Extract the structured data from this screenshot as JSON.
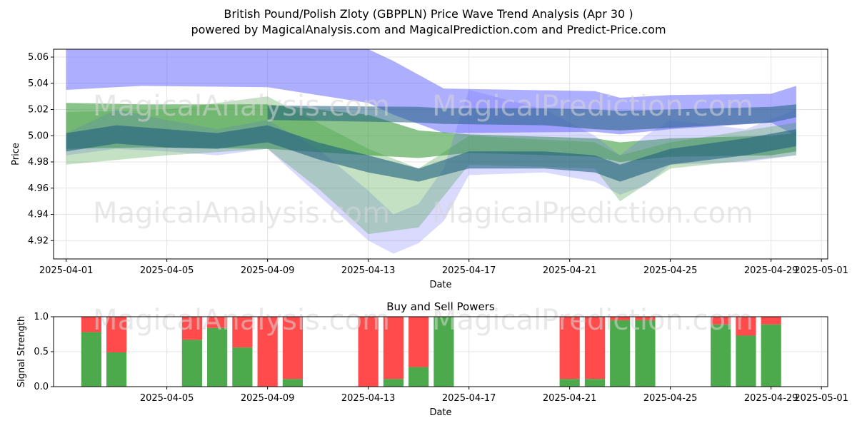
{
  "header": {
    "title": "British Pound/Polish Zloty (GBPPLN) Price Wave Trend Analysis (Apr 30 )",
    "subtitle": "powered by MagicalAnalysis.com and MagicalPrediction.com and Predict-Price.com"
  },
  "watermarks": {
    "left": "MagicalAnalysis.com",
    "right": "MagicalPrediction.com"
  },
  "colors": {
    "blue_band": "#6b6bff",
    "green_band": "#3c9c3c",
    "dark_band": "#1f5f7f",
    "buy": "#4caa4c",
    "sell": "#ff4b4b",
    "grid": "#e3e3e3"
  },
  "chart_data": [
    {
      "type": "area",
      "title": "",
      "xlabel": "Date",
      "ylabel": "Price",
      "x_range": [
        "2025-03-31T12:00",
        "2025-05-01T06:00"
      ],
      "ylim": [
        4.906,
        5.066
      ],
      "x_ticks": [
        "2025-04-01",
        "2025-04-05",
        "2025-04-09",
        "2025-04-13",
        "2025-04-17",
        "2025-04-21",
        "2025-04-25",
        "2025-04-29",
        "2025-05-01"
      ],
      "y_ticks": [
        4.92,
        4.94,
        4.96,
        4.98,
        5.0,
        5.02,
        5.04,
        5.06
      ],
      "grid": true,
      "series": [
        {
          "color": "blue_band",
          "opacity": 0.55,
          "x": [
            "2025-04-01",
            "2025-04-04",
            "2025-04-09",
            "2025-04-13",
            "2025-04-14",
            "2025-04-16",
            "2025-04-22",
            "2025-04-23",
            "2025-04-25",
            "2025-04-29",
            "2025-04-30"
          ],
          "upper": [
            5.07,
            5.07,
            5.07,
            5.066,
            5.057,
            5.036,
            5.034,
            5.029,
            5.031,
            5.032,
            5.038
          ],
          "lower": [
            5.035,
            5.038,
            5.037,
            5.025,
            5.016,
            5.002,
            5.003,
            5.001,
            5.005,
            5.01,
            5.0
          ]
        },
        {
          "color": "green_band",
          "opacity": 0.6,
          "x": [
            "2025-04-01",
            "2025-04-04",
            "2025-04-09",
            "2025-04-13",
            "2025-04-15",
            "2025-04-17",
            "2025-04-22",
            "2025-04-23",
            "2025-04-25",
            "2025-04-29",
            "2025-04-30"
          ],
          "upper": [
            5.025,
            5.024,
            5.024,
            5.016,
            5.004,
            5.001,
            4.998,
            4.995,
            4.998,
            5.0,
            5.002
          ],
          "lower": [
            4.99,
            4.991,
            4.99,
            4.985,
            4.983,
            4.987,
            4.984,
            4.98,
            4.984,
            4.985,
            4.988
          ]
        },
        {
          "color": "blue_band",
          "opacity": 0.25,
          "x": [
            "2025-04-01",
            "2025-04-03",
            "2025-04-05",
            "2025-04-07",
            "2025-04-09",
            "2025-04-11",
            "2025-04-13",
            "2025-04-14",
            "2025-04-15",
            "2025-04-16",
            "2025-04-17",
            "2025-04-20",
            "2025-04-22",
            "2025-04-23",
            "2025-04-24",
            "2025-04-25",
            "2025-04-28",
            "2025-04-30"
          ],
          "upper": [
            5.002,
            5.02,
            5.012,
            5.005,
            5.012,
            4.99,
            4.958,
            4.94,
            4.948,
            4.975,
            5.035,
            5.02,
            5.0,
            4.985,
            5.0,
            5.012,
            5.005,
            5.02
          ],
          "lower": [
            4.985,
            4.99,
            4.988,
            4.985,
            4.99,
            4.955,
            4.92,
            4.91,
            4.918,
            4.935,
            4.97,
            4.972,
            4.965,
            4.955,
            4.962,
            4.978,
            4.98,
            4.985
          ]
        },
        {
          "color": "green_band",
          "opacity": 0.3,
          "x": [
            "2025-04-01",
            "2025-04-05",
            "2025-04-09",
            "2025-04-11",
            "2025-04-13",
            "2025-04-15",
            "2025-04-17",
            "2025-04-22",
            "2025-04-23",
            "2025-04-25",
            "2025-04-30"
          ],
          "upper": [
            5.018,
            5.02,
            5.03,
            5.01,
            4.99,
            4.975,
            5.0,
            4.995,
            4.985,
            4.995,
            5.01
          ],
          "lower": [
            4.978,
            4.985,
            4.99,
            4.96,
            4.925,
            4.93,
            4.978,
            4.975,
            4.95,
            4.975,
            4.985
          ]
        },
        {
          "color": "dark_band",
          "opacity": 0.6,
          "x": [
            "2025-04-01",
            "2025-04-03",
            "2025-04-05",
            "2025-04-07",
            "2025-04-09",
            "2025-04-11",
            "2025-04-13",
            "2025-04-15",
            "2025-04-17",
            "2025-04-20",
            "2025-04-22",
            "2025-04-23",
            "2025-04-25",
            "2025-04-28",
            "2025-04-30"
          ],
          "upper": [
            5.002,
            5.008,
            5.005,
            5.002,
            5.008,
            4.995,
            4.985,
            4.975,
            4.988,
            4.988,
            4.985,
            4.978,
            4.99,
            4.998,
            5.005
          ],
          "lower": [
            4.988,
            4.994,
            4.991,
            4.99,
            4.995,
            4.982,
            4.972,
            4.965,
            4.975,
            4.975,
            4.972,
            4.965,
            4.978,
            4.985,
            4.992
          ]
        },
        {
          "color": "dark_band",
          "opacity": 0.55,
          "x": [
            "2025-04-09",
            "2025-04-15",
            "2025-04-16",
            "2025-04-20",
            "2025-04-22",
            "2025-04-23",
            "2025-04-25",
            "2025-04-29",
            "2025-04-30"
          ],
          "upper": [
            5.023,
            5.022,
            5.021,
            5.021,
            5.02,
            5.019,
            5.02,
            5.022,
            5.024
          ],
          "lower": [
            5.012,
            5.01,
            5.009,
            5.008,
            5.005,
            5.004,
            5.006,
            5.01,
            5.014
          ]
        }
      ]
    },
    {
      "type": "bar",
      "title": "Buy and Sell Powers",
      "xlabel": "Date",
      "ylabel": "Signal Strength",
      "ylim": [
        0,
        1.0
      ],
      "y_ticks": [
        0.0,
        0.5,
        1.0
      ],
      "x_ticks": [
        "2025-04-05",
        "2025-04-09",
        "2025-04-13",
        "2025-04-17",
        "2025-04-21",
        "2025-04-25",
        "2025-04-29",
        "2025-05-01"
      ],
      "grid": true,
      "categories": [
        "2025-04-02",
        "2025-04-03",
        "2025-04-06",
        "2025-04-07",
        "2025-04-08",
        "2025-04-09",
        "2025-04-10",
        "2025-04-13",
        "2025-04-14",
        "2025-04-15",
        "2025-04-16",
        "2025-04-21",
        "2025-04-22",
        "2025-04-23",
        "2025-04-24",
        "2025-04-27",
        "2025-04-28",
        "2025-04-29"
      ],
      "series": [
        {
          "color": "buy",
          "values": [
            0.78,
            0.49,
            0.67,
            0.84,
            0.56,
            0.0,
            0.11,
            0.0,
            0.11,
            0.28,
            1.0,
            0.11,
            0.11,
            0.95,
            0.95,
            0.89,
            0.73,
            0.89
          ]
        },
        {
          "color": "sell",
          "values": [
            0.22,
            0.51,
            0.33,
            0.16,
            0.44,
            1.0,
            0.89,
            1.0,
            0.89,
            0.72,
            0.0,
            0.89,
            0.89,
            0.05,
            0.05,
            0.11,
            0.27,
            0.11
          ]
        }
      ]
    }
  ]
}
